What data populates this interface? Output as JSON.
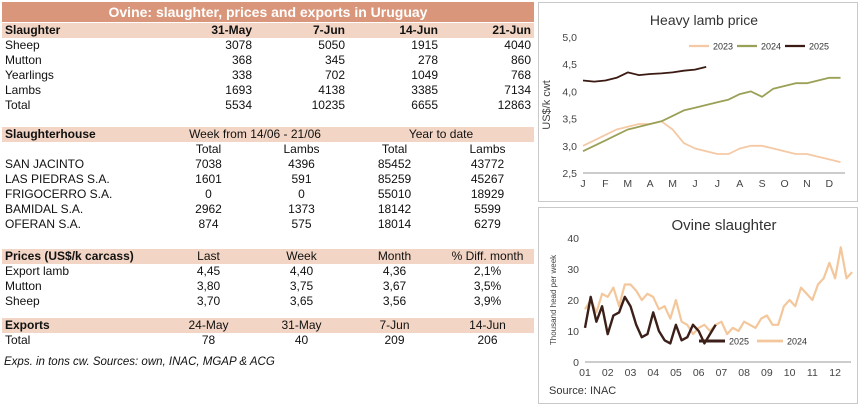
{
  "title": "Ovine: slaughter, prices and exports in Uruguay",
  "slaughter": {
    "header": "Slaughter",
    "cols": [
      "31-May",
      "7-Jun",
      "14-Jun",
      "21-Jun"
    ],
    "rows": [
      {
        "label": "Sheep",
        "vals": [
          "3078",
          "5050",
          "1915",
          "4040"
        ]
      },
      {
        "label": "Mutton",
        "vals": [
          "368",
          "345",
          "278",
          "860"
        ]
      },
      {
        "label": "Yearlings",
        "vals": [
          "338",
          "702",
          "1049",
          "768"
        ]
      },
      {
        "label": "Lambs",
        "vals": [
          "1693",
          "4138",
          "3385",
          "7134"
        ]
      },
      {
        "label": "Total",
        "vals": [
          "5534",
          "10235",
          "6655",
          "12863"
        ]
      }
    ]
  },
  "slaughterhouse": {
    "header": "Slaughterhouse",
    "week_label": "Week from  14/06 - 21/06",
    "ytd_label": "Year to date",
    "sub": [
      "Total",
      "Lambs",
      "Total",
      "Lambs"
    ],
    "rows": [
      {
        "label": "SAN JACINTO",
        "vals": [
          "7038",
          "4396",
          "85452",
          "43772"
        ]
      },
      {
        "label": "LAS PIEDRAS S.A.",
        "vals": [
          "1601",
          "591",
          "85259",
          "45267"
        ]
      },
      {
        "label": "FRIGOCERRO S.A.",
        "vals": [
          "0",
          "0",
          "55010",
          "18929"
        ]
      },
      {
        "label": "BAMIDAL S.A.",
        "vals": [
          "2962",
          "1373",
          "18142",
          "5599"
        ]
      },
      {
        "label": "OFERAN S.A.",
        "vals": [
          "874",
          "575",
          "18014",
          "6279"
        ]
      }
    ]
  },
  "prices": {
    "header": "Prices (US$/k carcass)",
    "cols": [
      "Last",
      "Week",
      "Month",
      "% Diff. month"
    ],
    "rows": [
      {
        "label": "Export lamb",
        "vals": [
          "4,45",
          "4,40",
          "4,36",
          "2,1%"
        ]
      },
      {
        "label": "Mutton",
        "vals": [
          "3,80",
          "3,75",
          "3,67",
          "3,5%"
        ]
      },
      {
        "label": "Sheep",
        "vals": [
          "3,70",
          "3,65",
          "3,56",
          "3,9%"
        ]
      }
    ]
  },
  "exports": {
    "header": "Exports",
    "cols": [
      "24-May",
      "31-May",
      "7-Jun",
      "14-Jun"
    ],
    "rows": [
      {
        "label": "Total",
        "vals": [
          "78",
          "40",
          "209",
          "206"
        ]
      }
    ]
  },
  "footnote": "Exps. in tons cw. Sources: own, INAC, MGAP & ACG",
  "colors": {
    "header_bar": "#d9967a",
    "section_band": "#f2d5c4",
    "s2023": "#f5c9a4",
    "s2024": "#9aa056",
    "s2025": "#3a1a12",
    "slaughter2024": "#f3c79b",
    "slaughter2025": "#3b1f18"
  },
  "chart_data": [
    {
      "type": "line",
      "title": "Heavy lamb price",
      "ylabel": "US$/k cwt",
      "xlabel": "",
      "x_ticks": [
        "J",
        "F",
        "M",
        "A",
        "M",
        "J",
        "J",
        "A",
        "S",
        "O",
        "N",
        "D"
      ],
      "ylim": [
        2.5,
        5.0
      ],
      "y_ticks": [
        "2,5",
        "3,0",
        "3,5",
        "4,0",
        "4,5",
        "5,0"
      ],
      "grid": false,
      "legend": "top",
      "series": [
        {
          "name": "2023",
          "x": [
            1,
            1.5,
            2,
            2.5,
            3,
            3.5,
            4,
            4.5,
            5,
            5.5,
            6,
            6.5,
            7,
            7.5,
            8,
            8.5,
            9,
            9.5,
            10,
            10.5,
            11,
            11.5,
            12,
            12.5
          ],
          "y": [
            3.0,
            3.1,
            3.2,
            3.3,
            3.35,
            3.4,
            3.4,
            3.45,
            3.3,
            3.05,
            2.95,
            2.9,
            2.85,
            2.85,
            2.95,
            3.0,
            3.0,
            2.95,
            2.9,
            2.85,
            2.85,
            2.8,
            2.75,
            2.7
          ]
        },
        {
          "name": "2024",
          "x": [
            1,
            1.5,
            2,
            2.5,
            3,
            3.5,
            4,
            4.5,
            5,
            5.5,
            6,
            6.5,
            7,
            7.5,
            8,
            8.5,
            9,
            9.5,
            10,
            10.5,
            11,
            11.5,
            12,
            12.5
          ],
          "y": [
            2.9,
            3.0,
            3.1,
            3.2,
            3.3,
            3.35,
            3.4,
            3.45,
            3.55,
            3.65,
            3.7,
            3.75,
            3.8,
            3.85,
            3.95,
            4.0,
            3.9,
            4.05,
            4.1,
            4.15,
            4.15,
            4.2,
            4.25,
            4.25
          ]
        },
        {
          "name": "2025",
          "x": [
            1,
            1.5,
            2,
            2.5,
            3,
            3.5,
            4,
            4.5,
            5,
            5.5,
            6,
            6.5
          ],
          "y": [
            4.2,
            4.18,
            4.2,
            4.25,
            4.35,
            4.3,
            4.32,
            4.33,
            4.35,
            4.38,
            4.4,
            4.45
          ]
        }
      ]
    },
    {
      "type": "line",
      "title": "Ovine slaughter",
      "ylabel": "Thousand head per week",
      "xlabel": "",
      "x_ticks": [
        "01",
        "02",
        "03",
        "04",
        "05",
        "06",
        "07",
        "08",
        "09",
        "10",
        "11",
        "12"
      ],
      "ylim": [
        0,
        40
      ],
      "y_ticks": [
        "0",
        "10",
        "20",
        "30",
        "40"
      ],
      "grid": false,
      "legend": "bottom",
      "source": "Source: INAC",
      "series": [
        {
          "name": "2024",
          "x": [
            1,
            1.25,
            1.5,
            1.75,
            2,
            2.25,
            2.5,
            2.75,
            3,
            3.25,
            3.5,
            3.75,
            4,
            4.25,
            4.5,
            4.75,
            5,
            5.25,
            5.5,
            5.75,
            6,
            6.25,
            6.5,
            6.75,
            7,
            7.25,
            7.5,
            7.75,
            8,
            8.25,
            8.5,
            8.75,
            9,
            9.25,
            9.5,
            9.75,
            10,
            10.25,
            10.5,
            10.75,
            11,
            11.25,
            11.5,
            11.75,
            12,
            12.25,
            12.5,
            12.75
          ],
          "y": [
            17,
            20,
            16,
            22,
            21,
            24,
            18,
            25,
            25,
            23,
            20,
            22,
            21,
            17,
            18,
            14,
            20,
            13,
            12,
            9,
            11,
            12,
            10,
            12,
            13,
            9,
            11,
            10,
            13,
            12,
            11,
            14,
            15,
            12,
            12,
            18,
            20,
            18,
            24,
            22,
            20,
            25,
            27,
            32,
            27,
            37,
            27,
            29
          ]
        },
        {
          "name": "2025",
          "x": [
            1,
            1.25,
            1.5,
            1.75,
            2,
            2.25,
            2.5,
            2.75,
            3,
            3.25,
            3.5,
            3.75,
            4,
            4.25,
            4.5,
            4.75,
            5,
            5.25,
            5.5,
            5.75,
            6,
            6.25,
            6.5,
            6.75
          ],
          "y": [
            11,
            21,
            13,
            18,
            9,
            15,
            16,
            21,
            18,
            12,
            8,
            9,
            16,
            10,
            7,
            6,
            12,
            7,
            8,
            12,
            10,
            6,
            9,
            12
          ]
        }
      ]
    }
  ]
}
